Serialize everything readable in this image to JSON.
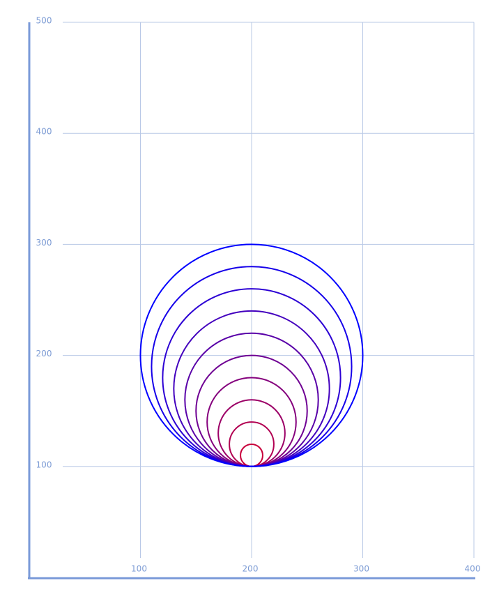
{
  "chart_data": {
    "type": "circles",
    "xlim": [
      0,
      400
    ],
    "ylim": [
      0,
      500
    ],
    "xticks": [
      100,
      200,
      300,
      400
    ],
    "yticks": [
      100,
      200,
      300,
      400,
      500
    ],
    "grid": true,
    "circles": [
      {
        "x": 200,
        "y": 110,
        "r": 10,
        "color": "#c8003c"
      },
      {
        "x": 200,
        "y": 120,
        "r": 20,
        "color": "#b20052"
      },
      {
        "x": 200,
        "y": 130,
        "r": 30,
        "color": "#9c0067"
      },
      {
        "x": 200,
        "y": 140,
        "r": 40,
        "color": "#85007d"
      },
      {
        "x": 200,
        "y": 150,
        "r": 50,
        "color": "#6f0093"
      },
      {
        "x": 200,
        "y": 160,
        "r": 60,
        "color": "#5900a8"
      },
      {
        "x": 200,
        "y": 170,
        "r": 70,
        "color": "#4300be"
      },
      {
        "x": 200,
        "y": 180,
        "r": 80,
        "color": "#2c00d4"
      },
      {
        "x": 200,
        "y": 190,
        "r": 90,
        "color": "#1600e9"
      },
      {
        "x": 200,
        "y": 200,
        "r": 100,
        "color": "#0000ff"
      }
    ]
  }
}
